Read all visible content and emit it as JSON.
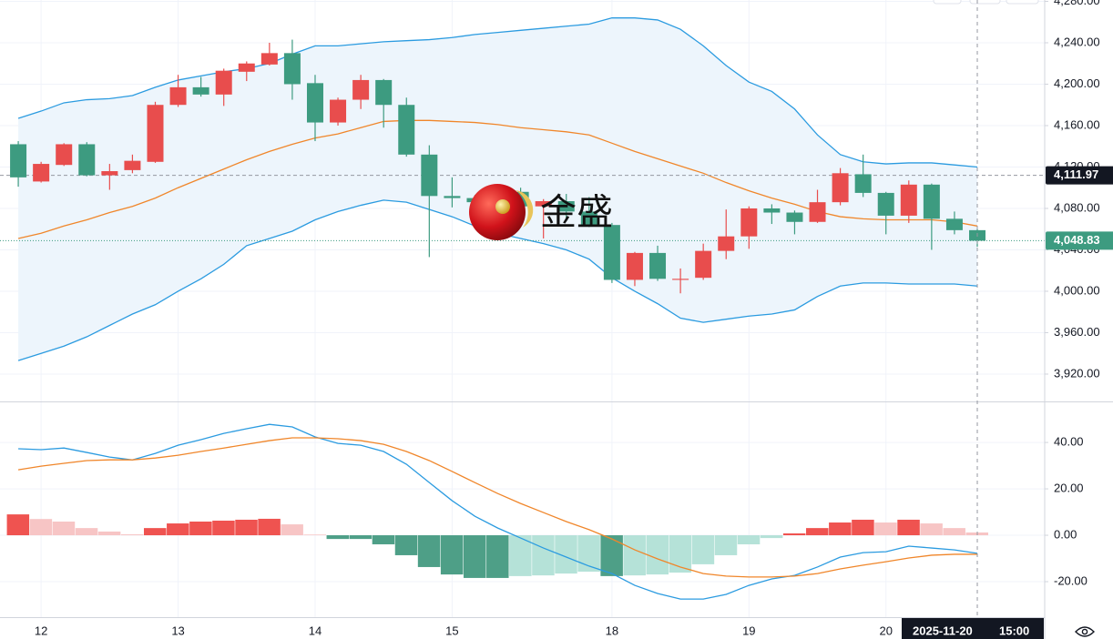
{
  "chart_data": [
    {
      "type": "candlestick",
      "categories": [
        null,
        "12",
        null,
        null,
        null,
        null,
        null,
        "13",
        null,
        null,
        null,
        null,
        null,
        "14",
        null,
        null,
        null,
        null,
        null,
        "15",
        null,
        null,
        null,
        null,
        null,
        null,
        "18",
        null,
        null,
        null,
        null,
        null,
        "19",
        null,
        null,
        null,
        null,
        null,
        "20",
        null,
        null,
        null,
        null
      ],
      "open": [
        4142,
        4106,
        4122,
        4142,
        4112,
        4117,
        4125,
        4180,
        4197,
        4190,
        4212,
        4219,
        4230,
        4201,
        4163,
        4185,
        4204,
        4180,
        4132,
        4092,
        4090,
        4084,
        4096,
        4082,
        4087,
        4077,
        4064,
        4011,
        4037,
        4011,
        4013,
        4039,
        4053,
        4080,
        4076,
        4067,
        4086,
        4113,
        4095,
        4073,
        4103,
        4070,
        4059
      ],
      "high": [
        4145,
        4125,
        4143,
        4144,
        4123,
        4132,
        4183,
        4209,
        4207,
        4215,
        4222,
        4240,
        4243,
        4209,
        4187,
        4209,
        4205,
        4187,
        4141,
        4110,
        4093,
        4096,
        4100,
        4089,
        4094,
        4091,
        4066,
        4038,
        4044,
        4022,
        4046,
        4079,
        4082,
        4084,
        4078,
        4098,
        4119,
        4132,
        4096,
        4107,
        4104,
        4077,
        4060
      ],
      "low": [
        4101,
        4105,
        4121,
        4111,
        4098,
        4114,
        4124,
        4178,
        4188,
        4179,
        4203,
        4218,
        4185,
        4145,
        4160,
        4176,
        4158,
        4130,
        4033,
        4081,
        4083,
        4082,
        4080,
        4051,
        4070,
        4062,
        4008,
        4005,
        4010,
        3998,
        4011,
        4031,
        4041,
        4065,
        4055,
        4066,
        4083,
        4091,
        4055,
        4066,
        4040,
        4055,
        4043
      ],
      "close": [
        4110,
        4123,
        4142,
        4112,
        4116,
        4126,
        4180,
        4197,
        4190,
        4213,
        4220,
        4230,
        4200,
        4163,
        4185,
        4204,
        4180,
        4132,
        4092,
        4090,
        4086,
        4094,
        4082,
        4087,
        4077,
        4064,
        4011,
        4037,
        4012,
        4012,
        4039,
        4053,
        4080,
        4076,
        4067,
        4086,
        4114,
        4095,
        4073,
        4103,
        4070,
        4059,
        4048.83
      ],
      "up_color": "#e84d4d",
      "down_color": "#3d9b80",
      "overlays": [
        {
          "color": "#2b9be0",
          "values": [
            4167,
            4174,
            4182,
            4185,
            4186,
            4189,
            4197,
            4204,
            4208,
            4212,
            4215,
            4220,
            4229,
            4237,
            4237,
            4239,
            4241,
            4242,
            4243,
            4245,
            4248,
            4250,
            4252,
            4254,
            4256,
            4258,
            4264,
            4264,
            4262,
            4253,
            4237,
            4218,
            4202,
            4193,
            4176,
            4151,
            4132,
            4125,
            4123,
            4124,
            4124,
            4122,
            4120
          ]
        },
        {
          "color": "#f0862a",
          "values": [
            4051,
            4056,
            4063,
            4069,
            4076,
            4082,
            4090,
            4100,
            4109,
            4118,
            4127,
            4135,
            4142,
            4148,
            4152,
            4158,
            4164,
            4165,
            4165,
            4164,
            4163,
            4161,
            4158,
            4156,
            4154,
            4151,
            4143,
            4135,
            4128,
            4121,
            4114,
            4105,
            4097,
            4090,
            4084,
            4077,
            4072,
            4070,
            4069,
            4069,
            4069,
            4067,
            4063
          ]
        },
        {
          "color": "#2b9be0",
          "values": [
            3933,
            3940,
            3947,
            3956,
            3967,
            3978,
            3987,
            4000,
            4012,
            4026,
            4044,
            4051,
            4058,
            4069,
            4077,
            4083,
            4088,
            4086,
            4079,
            4072,
            4063,
            4056,
            4051,
            4046,
            4040,
            4031,
            4013,
            4000,
            3988,
            3974,
            3970,
            3973,
            3976,
            3978,
            3982,
            3995,
            4005,
            4008,
            4008,
            4007,
            4007,
            4007,
            4005
          ]
        }
      ],
      "band_fill": "#edf5fc",
      "ylim": [
        3893.6,
        4281.3
      ],
      "yticks": [
        {
          "value": 3920,
          "label": "3,920.00"
        },
        {
          "value": 3960,
          "label": "3,960.00"
        },
        {
          "value": 4000,
          "label": "4,000.00"
        },
        {
          "value": 4040,
          "label": "4,040.00"
        },
        {
          "value": 4080,
          "label": "4,080.00"
        },
        {
          "value": 4120,
          "label": "4,120.00"
        },
        {
          "value": 4160,
          "label": "4,160.00"
        },
        {
          "value": 4200,
          "label": "4,200.00"
        },
        {
          "value": 4240,
          "label": "4,240.00"
        },
        {
          "value": 4280,
          "label": "4,280.00"
        }
      ],
      "grid": true,
      "ref_price": {
        "value": 4111.97,
        "label": "4,111.97"
      },
      "last_price": {
        "value": 4048.83,
        "label": "4,048.83"
      },
      "logo": "金盛",
      "crosshair": {
        "date": "2025-11-20",
        "time": "15:00"
      }
    },
    {
      "type": "macd",
      "series": [
        {
          "color": "#2b9be0",
          "values": [
            37.3,
            36.9,
            37.6,
            35.7,
            33.7,
            32.5,
            35.3,
            38.8,
            41.2,
            43.9,
            45.9,
            47.8,
            46.7,
            42.4,
            39.6,
            38.8,
            36.1,
            30.6,
            22.7,
            14.9,
            8.2,
            3.1,
            -1.2,
            -5.5,
            -9.4,
            -13.3,
            -16.5,
            -21.6,
            -25.1,
            -27.5,
            -27.5,
            -25.5,
            -21.6,
            -18.8,
            -17.3,
            -13.7,
            -9.4,
            -7.5,
            -7.1,
            -4.7,
            -5.5,
            -6.3,
            -7.8
          ]
        },
        {
          "color": "#f0862a",
          "values": [
            28.2,
            29.8,
            31.0,
            32.2,
            32.5,
            32.5,
            33.3,
            34.5,
            36.1,
            37.6,
            39.2,
            40.8,
            42.0,
            42.0,
            41.6,
            40.8,
            39.2,
            36.1,
            32.2,
            27.5,
            22.7,
            18.0,
            13.7,
            9.8,
            5.9,
            2.4,
            -1.6,
            -6.3,
            -10.2,
            -13.7,
            -16.5,
            -17.6,
            -18.0,
            -18.0,
            -17.6,
            -16.5,
            -14.5,
            -12.9,
            -11.4,
            -9.8,
            -8.6,
            -8.2,
            -8.2
          ]
        }
      ],
      "histogram": [
        9.0,
        7.0,
        5.9,
        3.1,
        1.6,
        0.4,
        3.1,
        5.1,
        5.9,
        6.3,
        6.7,
        7.1,
        4.7,
        0.3,
        -1.6,
        -1.6,
        -3.9,
        -8.6,
        -13.7,
        -16.9,
        -18.4,
        -18.4,
        -17.6,
        -17.3,
        -16.5,
        -15.7,
        -17.6,
        -17.3,
        -16.9,
        -16.1,
        -12.5,
        -8.6,
        -3.9,
        -1.2,
        0.8,
        3.1,
        5.5,
        6.7,
        5.5,
        6.7,
        5.1,
        3.1,
        1.2
      ],
      "ylim": [
        -35.3,
        57.3
      ],
      "yticks": [
        {
          "value": -20,
          "label": "-20.00"
        },
        {
          "value": 0,
          "label": "0.00"
        },
        {
          "value": 20,
          "label": "20.00"
        },
        {
          "value": 40,
          "label": "40.00"
        }
      ],
      "grid": true
    }
  ]
}
